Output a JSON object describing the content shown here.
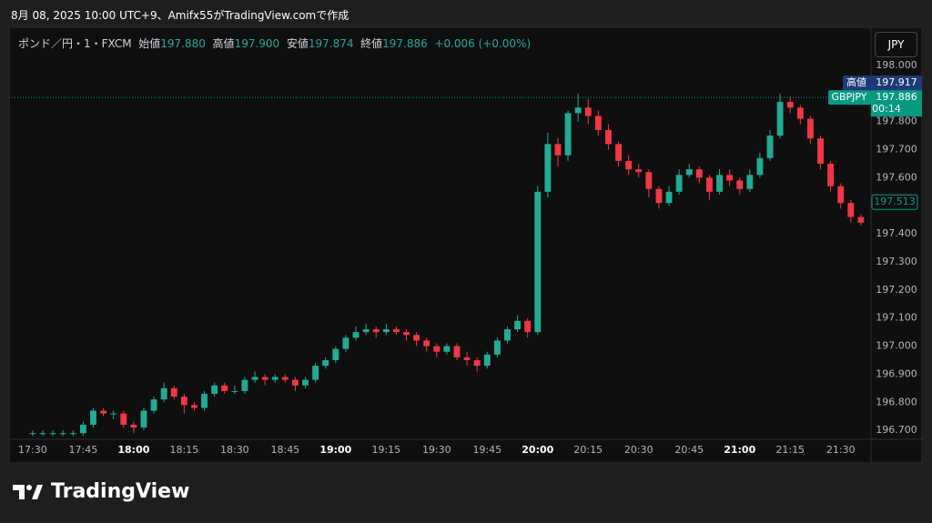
{
  "header": {
    "caption": "8月 08, 2025 10:00 UTC+9、Amifx55がTradingView.comで作成"
  },
  "legend": {
    "symbol": "ポンド／円・1・FXCM",
    "open_label": "始値",
    "open": "197.880",
    "high_label": "高値",
    "high": "197.900",
    "low_label": "安値",
    "low": "197.874",
    "close_label": "終値",
    "close": "197.886",
    "change": "+0.006 (+0.00%)"
  },
  "currency_button": "JPY",
  "brand": "TradingView",
  "chart_data": {
    "type": "candlestick",
    "up_color": "#22ab94",
    "down_color": "#f23645",
    "grid": true,
    "x": [
      "17:30",
      "17:33",
      "17:36",
      "17:39",
      "17:42",
      "17:45",
      "17:48",
      "17:51",
      "17:54",
      "17:57",
      "18:00",
      "18:03",
      "18:06",
      "18:09",
      "18:12",
      "18:15",
      "18:18",
      "18:21",
      "18:24",
      "18:27",
      "18:30",
      "18:33",
      "18:36",
      "18:39",
      "18:42",
      "18:45",
      "18:48",
      "18:51",
      "18:54",
      "18:57",
      "19:00",
      "19:03",
      "19:06",
      "19:09",
      "19:12",
      "19:15",
      "19:18",
      "19:21",
      "19:24",
      "19:27",
      "19:30",
      "19:33",
      "19:36",
      "19:39",
      "19:42",
      "19:45",
      "19:48",
      "19:51",
      "19:54",
      "19:57",
      "20:00",
      "20:03",
      "20:06",
      "20:09",
      "20:12",
      "20:15",
      "20:18",
      "20:21",
      "20:24",
      "20:27",
      "20:30",
      "20:33",
      "20:36",
      "20:39",
      "20:42",
      "20:45",
      "20:48",
      "20:51",
      "20:54",
      "20:57",
      "21:00",
      "21:03",
      "21:06",
      "21:09",
      "21:12",
      "21:15",
      "21:18",
      "21:21",
      "21:24",
      "21:27",
      "21:30",
      "21:33",
      "21:36"
    ],
    "ohlc": [
      [
        196.69,
        196.7,
        196.68,
        196.69
      ],
      [
        196.69,
        196.7,
        196.68,
        196.69
      ],
      [
        196.69,
        196.7,
        196.68,
        196.69
      ],
      [
        196.69,
        196.7,
        196.68,
        196.69
      ],
      [
        196.69,
        196.7,
        196.68,
        196.69
      ],
      [
        196.69,
        196.73,
        196.68,
        196.72
      ],
      [
        196.72,
        196.78,
        196.71,
        196.77
      ],
      [
        196.77,
        196.78,
        196.75,
        196.76
      ],
      [
        196.76,
        196.77,
        196.74,
        196.76
      ],
      [
        196.76,
        196.77,
        196.71,
        196.72
      ],
      [
        196.72,
        196.73,
        196.69,
        196.71
      ],
      [
        196.71,
        196.78,
        196.7,
        196.77
      ],
      [
        196.77,
        196.82,
        196.76,
        196.81
      ],
      [
        196.81,
        196.87,
        196.8,
        196.85
      ],
      [
        196.85,
        196.86,
        196.81,
        196.82
      ],
      [
        196.82,
        196.83,
        196.76,
        196.79
      ],
      [
        196.79,
        196.8,
        196.77,
        196.78
      ],
      [
        196.78,
        196.84,
        196.77,
        196.83
      ],
      [
        196.83,
        196.87,
        196.82,
        196.86
      ],
      [
        196.86,
        196.87,
        196.83,
        196.84
      ],
      [
        196.84,
        196.86,
        196.83,
        196.84
      ],
      [
        196.84,
        196.89,
        196.83,
        196.88
      ],
      [
        196.88,
        196.91,
        196.87,
        196.89
      ],
      [
        196.89,
        196.9,
        196.86,
        196.88
      ],
      [
        196.88,
        196.9,
        196.87,
        196.89
      ],
      [
        196.89,
        196.9,
        196.87,
        196.88
      ],
      [
        196.88,
        196.89,
        196.84,
        196.86
      ],
      [
        196.86,
        196.89,
        196.85,
        196.88
      ],
      [
        196.88,
        196.94,
        196.87,
        196.93
      ],
      [
        196.93,
        196.96,
        196.92,
        196.95
      ],
      [
        196.95,
        197.0,
        196.94,
        196.99
      ],
      [
        196.99,
        197.04,
        196.98,
        197.03
      ],
      [
        197.03,
        197.07,
        197.02,
        197.05
      ],
      [
        197.05,
        197.08,
        197.04,
        197.06
      ],
      [
        197.06,
        197.07,
        197.03,
        197.05
      ],
      [
        197.05,
        197.08,
        197.04,
        197.06
      ],
      [
        197.06,
        197.07,
        197.04,
        197.05
      ],
      [
        197.05,
        197.06,
        197.02,
        197.04
      ],
      [
        197.04,
        197.05,
        197.0,
        197.02
      ],
      [
        197.02,
        197.03,
        196.98,
        197.0
      ],
      [
        197.0,
        197.01,
        196.96,
        196.98
      ],
      [
        196.98,
        197.01,
        196.97,
        197.0
      ],
      [
        197.0,
        197.01,
        196.95,
        196.96
      ],
      [
        196.96,
        196.98,
        196.93,
        196.95
      ],
      [
        196.95,
        196.96,
        196.91,
        196.93
      ],
      [
        196.93,
        196.98,
        196.92,
        196.97
      ],
      [
        196.97,
        197.03,
        196.96,
        197.02
      ],
      [
        197.02,
        197.07,
        197.01,
        197.06
      ],
      [
        197.06,
        197.11,
        197.05,
        197.09
      ],
      [
        197.09,
        197.1,
        197.03,
        197.05
      ],
      [
        197.05,
        197.57,
        197.04,
        197.55
      ],
      [
        197.55,
        197.76,
        197.53,
        197.72
      ],
      [
        197.72,
        197.74,
        197.64,
        197.68
      ],
      [
        197.68,
        197.84,
        197.66,
        197.83
      ],
      [
        197.83,
        197.9,
        197.8,
        197.85
      ],
      [
        197.85,
        197.88,
        197.79,
        197.82
      ],
      [
        197.82,
        197.84,
        197.75,
        197.77
      ],
      [
        197.77,
        197.79,
        197.7,
        197.72
      ],
      [
        197.72,
        197.73,
        197.64,
        197.66
      ],
      [
        197.66,
        197.68,
        197.61,
        197.63
      ],
      [
        197.63,
        197.65,
        197.6,
        197.62
      ],
      [
        197.62,
        197.63,
        197.53,
        197.56
      ],
      [
        197.56,
        197.57,
        197.49,
        197.51
      ],
      [
        197.51,
        197.57,
        197.5,
        197.55
      ],
      [
        197.55,
        197.63,
        197.54,
        197.61
      ],
      [
        197.61,
        197.65,
        197.6,
        197.63
      ],
      [
        197.63,
        197.64,
        197.58,
        197.6
      ],
      [
        197.6,
        197.61,
        197.52,
        197.55
      ],
      [
        197.55,
        197.63,
        197.54,
        197.61
      ],
      [
        197.61,
        197.63,
        197.57,
        197.59
      ],
      [
        197.59,
        197.6,
        197.54,
        197.56
      ],
      [
        197.56,
        197.63,
        197.55,
        197.61
      ],
      [
        197.61,
        197.69,
        197.6,
        197.67
      ],
      [
        197.67,
        197.77,
        197.66,
        197.75
      ],
      [
        197.75,
        197.9,
        197.74,
        197.87
      ],
      [
        197.87,
        197.89,
        197.83,
        197.85
      ],
      [
        197.85,
        197.86,
        197.79,
        197.81
      ],
      [
        197.81,
        197.82,
        197.72,
        197.74
      ],
      [
        197.74,
        197.75,
        197.63,
        197.65
      ],
      [
        197.65,
        197.66,
        197.55,
        197.57
      ],
      [
        197.57,
        197.58,
        197.49,
        197.51
      ],
      [
        197.51,
        197.52,
        197.44,
        197.46
      ],
      [
        197.46,
        197.47,
        197.43,
        197.44
      ]
    ],
    "xlim": [
      "17:23",
      "21:39"
    ],
    "xticks": [
      "17:30",
      "17:45",
      "18:00",
      "18:15",
      "18:30",
      "18:45",
      "19:00",
      "19:15",
      "19:30",
      "19:45",
      "20:00",
      "20:15",
      "20:30",
      "20:45",
      "21:00",
      "21:15",
      "21:30"
    ],
    "ylim": [
      196.668,
      198.136
    ],
    "yticks": [
      {
        "value": 196.7,
        "label": "196.700"
      },
      {
        "value": 196.8,
        "label": "196.800"
      },
      {
        "value": 196.9,
        "label": "196.900"
      },
      {
        "value": 197.0,
        "label": "197.000"
      },
      {
        "value": 197.1,
        "label": "197.100"
      },
      {
        "value": 197.2,
        "label": "197.200"
      },
      {
        "value": 197.3,
        "label": "197.300"
      },
      {
        "value": 197.4,
        "label": "197.400"
      },
      {
        "value": 197.5,
        "label": "197.500"
      },
      {
        "value": 197.6,
        "label": "197.600"
      },
      {
        "value": 197.7,
        "label": "197.700"
      },
      {
        "value": 197.8,
        "label": "197.800"
      },
      {
        "value": 197.9,
        "label": "197.900"
      },
      {
        "value": 198.0,
        "label": "198.000"
      }
    ],
    "last_price": {
      "name": "GBPJPY",
      "value": 197.886,
      "value_label": "197.886",
      "countdown": "00:14",
      "color": "#089981"
    },
    "high_marker": {
      "name": "高値",
      "value": 197.917,
      "value_label": "197.917",
      "color": "#1e3a78"
    },
    "cursor_price": {
      "value": 197.513,
      "value_label": "197.513",
      "color": "#089981"
    }
  }
}
